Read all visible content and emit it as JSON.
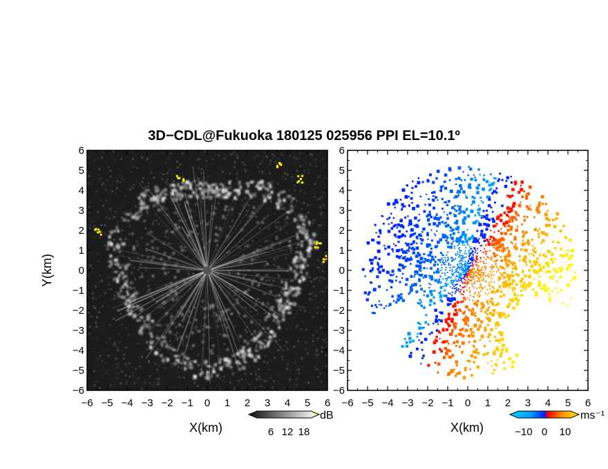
{
  "title": "3D−CDL@Fukuoka 180125 025956 PPI EL=10.1º",
  "panels": [
    {
      "name": "intensity",
      "xlabel": "X(km)",
      "ylabel": "Y(km)",
      "colorbar": {
        "unit": "dB",
        "tick_labels": [
          "6",
          "12",
          "18"
        ]
      }
    },
    {
      "name": "doppler-velocity",
      "xlabel": "X(km)",
      "ylabel": "",
      "colorbar": {
        "unit": "ms⁻¹",
        "tick_labels": [
          "−10",
          "0",
          "10"
        ]
      }
    }
  ],
  "chart_data": [
    {
      "type": "heatmap",
      "title": "3D−CDL@Fukuoka 180125 025956 PPI EL=10.1º",
      "xlabel": "X(km)",
      "ylabel": "Y(km)",
      "xlim": [
        -6,
        6
      ],
      "ylim": [
        -6,
        6
      ],
      "x_ticks": [
        -6,
        -5,
        -4,
        -3,
        -2,
        -1,
        0,
        1,
        2,
        3,
        4,
        5,
        6
      ],
      "y_ticks": [
        -6,
        -5,
        -4,
        -3,
        -2,
        -1,
        0,
        1,
        2,
        3,
        4,
        5,
        6
      ],
      "colorscale": "grayscale with yellow high end",
      "colorbar_ticks": [
        6,
        12,
        18
      ],
      "colorbar_unit": "dB",
      "colors": {
        "background": "#1a1a1a",
        "low": "#333333",
        "mid": "#9a9a9a",
        "high": "#ffffff",
        "max": "#ffee00"
      }
    },
    {
      "type": "heatmap",
      "title": "3D−CDL@Fukuoka 180125 025956 PPI EL=10.1º",
      "xlabel": "X(km)",
      "ylabel": "",
      "xlim": [
        -6,
        6
      ],
      "ylim": [
        -6,
        6
      ],
      "x_ticks": [
        -6,
        -5,
        -4,
        -3,
        -2,
        -1,
        0,
        1,
        2,
        3,
        4,
        5,
        6
      ],
      "y_ticks": [
        -6,
        -5,
        -4,
        -3,
        -2,
        -1,
        0,
        1,
        2,
        3,
        4,
        5,
        6
      ],
      "colorscale": "cyan-blue (negative) to red-orange-yellow (positive)",
      "colorbar_ticks": [
        -10,
        0,
        10
      ],
      "colorbar_unit": "ms⁻¹",
      "colors": {
        "neg_far": "#00c8ff",
        "neg_near": "#0033ff",
        "zero": "#ff0000",
        "pos_mid": "#ff8000",
        "pos_far": "#ffee00"
      }
    }
  ]
}
